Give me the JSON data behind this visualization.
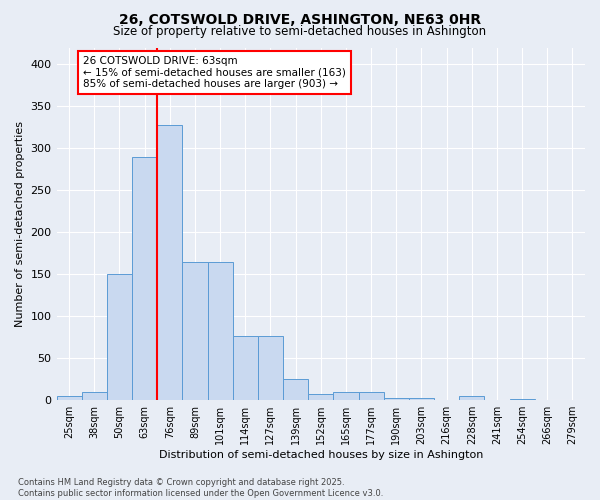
{
  "title": "26, COTSWOLD DRIVE, ASHINGTON, NE63 0HR",
  "subtitle": "Size of property relative to semi-detached houses in Ashington",
  "xlabel": "Distribution of semi-detached houses by size in Ashington",
  "ylabel": "Number of semi-detached properties",
  "categories": [
    "25sqm",
    "38sqm",
    "50sqm",
    "63sqm",
    "76sqm",
    "89sqm",
    "101sqm",
    "114sqm",
    "127sqm",
    "139sqm",
    "152sqm",
    "165sqm",
    "177sqm",
    "190sqm",
    "203sqm",
    "216sqm",
    "228sqm",
    "241sqm",
    "254sqm",
    "266sqm",
    "279sqm"
  ],
  "values": [
    5,
    10,
    150,
    290,
    328,
    165,
    165,
    77,
    77,
    25,
    7,
    10,
    10,
    3,
    3,
    0,
    5,
    0,
    2,
    0,
    0
  ],
  "bar_color": "#c9d9f0",
  "bar_edgecolor": "#5b9bd5",
  "redline_index": 3,
  "annotation_title": "26 COTSWOLD DRIVE: 63sqm",
  "annotation_line1": "← 15% of semi-detached houses are smaller (163)",
  "annotation_line2": "85% of semi-detached houses are larger (903) →",
  "ylim": [
    0,
    420
  ],
  "yticks": [
    0,
    50,
    100,
    150,
    200,
    250,
    300,
    350,
    400
  ],
  "background_color": "#e8edf5",
  "grid_color": "#ffffff",
  "footer": "Contains HM Land Registry data © Crown copyright and database right 2025.\nContains public sector information licensed under the Open Government Licence v3.0."
}
